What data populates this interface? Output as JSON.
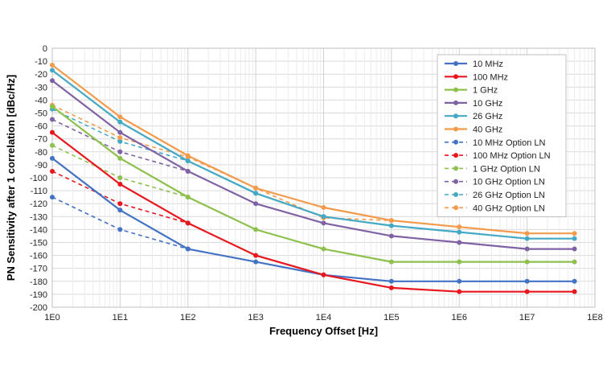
{
  "chart_data": {
    "type": "line",
    "title": "",
    "xlabel": "Frequency Offset [Hz]",
    "ylabel": "PN Sensitivity after 1 correlation [dBc/Hz]",
    "xscale": "log10",
    "xlim": [
      0,
      8
    ],
    "ylim": [
      -200,
      0
    ],
    "y_step": 10,
    "x_tick_labels": [
      "1E0",
      "1E1",
      "1E2",
      "1E3",
      "1E4",
      "1E5",
      "1E6",
      "1E7",
      "1E8"
    ],
    "grid": true,
    "legend_position": "top-right",
    "series": [
      {
        "name": "10 MHz",
        "color": "#4472C4",
        "dash": false,
        "x": [
          1,
          10,
          100,
          1000,
          10000,
          100000,
          1000000,
          10000000,
          50000000
        ],
        "values": [
          -85,
          -125,
          -155,
          -165,
          -175,
          -180,
          -180,
          -180,
          -180
        ]
      },
      {
        "name": "100 MHz",
        "color": "#E8171E",
        "dash": false,
        "x": [
          1,
          10,
          100,
          1000,
          10000,
          100000,
          1000000,
          10000000,
          50000000
        ],
        "values": [
          -65,
          -105,
          -135,
          -160,
          -175,
          -185,
          -188,
          -188,
          -188
        ]
      },
      {
        "name": "1 GHz",
        "color": "#8DC04D",
        "dash": false,
        "x": [
          1,
          10,
          100,
          1000,
          10000,
          100000,
          1000000,
          10000000,
          50000000
        ],
        "values": [
          -45,
          -85,
          -115,
          -140,
          -155,
          -165,
          -165,
          -165,
          -165
        ]
      },
      {
        "name": "10 GHz",
        "color": "#7F62A4",
        "dash": false,
        "x": [
          1,
          10,
          100,
          1000,
          10000,
          100000,
          1000000,
          10000000,
          50000000
        ],
        "values": [
          -25,
          -65,
          -95,
          -120,
          -135,
          -145,
          -150,
          -155,
          -155
        ]
      },
      {
        "name": "26 GHz",
        "color": "#44A9C4",
        "dash": false,
        "x": [
          1,
          10,
          100,
          1000,
          10000,
          100000,
          1000000,
          10000000,
          50000000
        ],
        "values": [
          -17,
          -57,
          -87,
          -112,
          -130,
          -137,
          -142,
          -147,
          -147
        ]
      },
      {
        "name": "40 GHz",
        "color": "#F39B4C",
        "dash": false,
        "x": [
          1,
          10,
          100,
          1000,
          10000,
          100000,
          1000000,
          10000000,
          50000000
        ],
        "values": [
          -13,
          -53,
          -83,
          -108,
          -123,
          -133,
          -138,
          -143,
          -143
        ]
      },
      {
        "name": "10 MHz Option LN",
        "color": "#4472C4",
        "dash": true,
        "x": [
          1,
          10,
          100
        ],
        "values": [
          -115,
          -140,
          -155
        ]
      },
      {
        "name": "100 MHz Option LN",
        "color": "#E8171E",
        "dash": true,
        "x": [
          1,
          10,
          100
        ],
        "values": [
          -95,
          -120,
          -135
        ]
      },
      {
        "name": "1 GHz Option LN",
        "color": "#8DC04D",
        "dash": true,
        "x": [
          1,
          10,
          100
        ],
        "values": [
          -75,
          -100,
          -115
        ]
      },
      {
        "name": "10 GHz Option LN",
        "color": "#7F62A4",
        "dash": true,
        "x": [
          1,
          10,
          100
        ],
        "values": [
          -55,
          -80,
          -95
        ]
      },
      {
        "name": "26 GHz Option LN",
        "color": "#44A9C4",
        "dash": true,
        "x": [
          1,
          10,
          100,
          1000,
          10000
        ],
        "values": [
          -47,
          -72,
          -87,
          -112,
          -130
        ]
      },
      {
        "name": "40 GHz Option LN",
        "color": "#F39B4C",
        "dash": true,
        "x": [
          1,
          10,
          100,
          1000,
          10000,
          100000
        ],
        "values": [
          -44,
          -69,
          -84,
          -108,
          -131,
          -133
        ]
      }
    ]
  }
}
